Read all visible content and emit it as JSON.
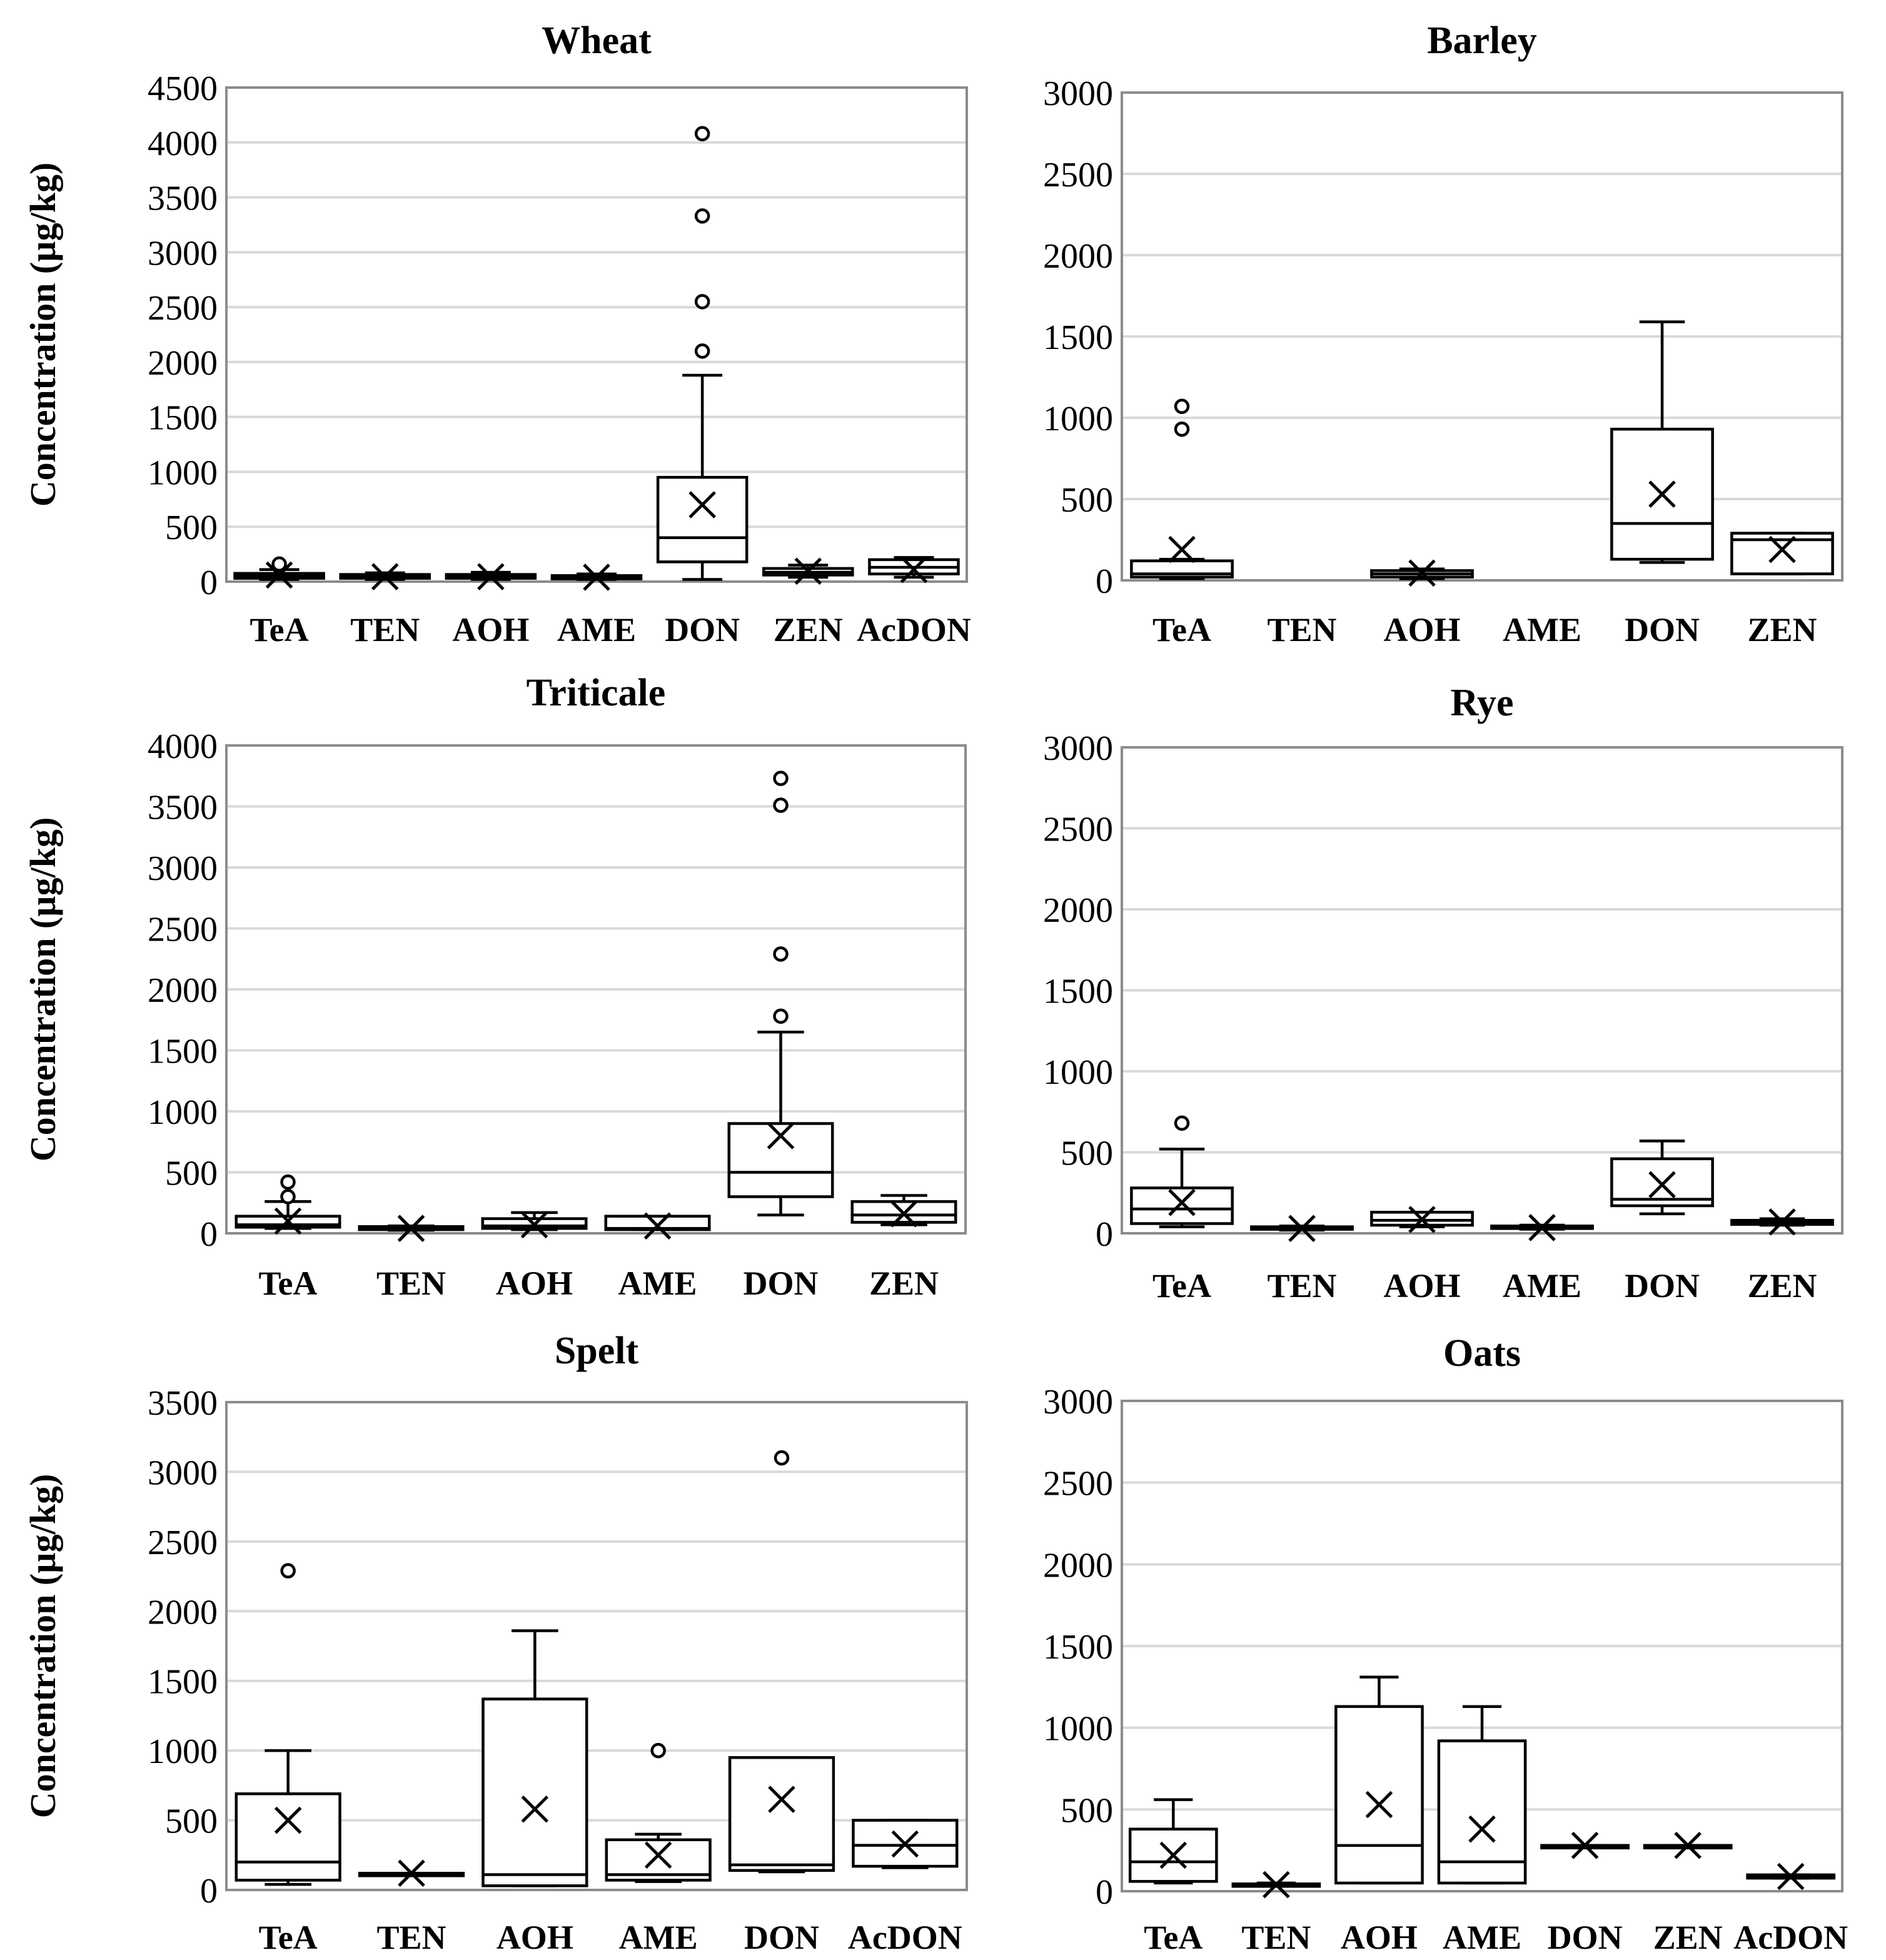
{
  "figure": {
    "ylabel": "Concentration (µg/kg)"
  },
  "chart_data": [
    {
      "type": "box",
      "title": "Wheat",
      "ylabel": "Concentration (µg/kg)",
      "ylim": [
        0,
        4500
      ],
      "yticks": [
        0,
        500,
        1000,
        1500,
        2000,
        2500,
        3000,
        3500,
        4000,
        4500
      ],
      "categories": [
        "TeA",
        "TEN",
        "AOH",
        "AME",
        "DON",
        "ZEN",
        "AcDON"
      ],
      "boxes": [
        {
          "category": "TeA",
          "min": 20,
          "q1": 30,
          "median": 55,
          "q3": 75,
          "max": 110,
          "mean": 60,
          "outliers": [
            160
          ]
        },
        {
          "category": "TEN",
          "min": 20,
          "q1": 30,
          "median": 45,
          "q3": 65,
          "max": 80,
          "mean": 45,
          "outliers": []
        },
        {
          "category": "AOH",
          "min": 20,
          "q1": 30,
          "median": 45,
          "q3": 65,
          "max": 85,
          "mean": 45,
          "outliers": []
        },
        {
          "category": "AME",
          "min": 20,
          "q1": 25,
          "median": 40,
          "q3": 55,
          "max": 70,
          "mean": 40,
          "outliers": []
        },
        {
          "category": "DON",
          "min": 20,
          "q1": 180,
          "median": 400,
          "q3": 950,
          "max": 1880,
          "mean": 700,
          "outliers": [
            2100,
            2550,
            3330,
            4080
          ]
        },
        {
          "category": "ZEN",
          "min": 40,
          "q1": 60,
          "median": 85,
          "q3": 120,
          "max": 150,
          "mean": 95,
          "outliers": []
        },
        {
          "category": "AcDON",
          "min": 40,
          "q1": 70,
          "median": 130,
          "q3": 200,
          "max": 220,
          "mean": 110,
          "outliers": []
        }
      ]
    },
    {
      "type": "box",
      "title": "Barley",
      "ylabel": "",
      "ylim": [
        0,
        3000
      ],
      "yticks": [
        0,
        500,
        1000,
        1500,
        2000,
        2500,
        3000
      ],
      "categories": [
        "TeA",
        "TEN",
        "AOH",
        "AME",
        "DON",
        "ZEN"
      ],
      "boxes": [
        {
          "category": "TeA",
          "min": 10,
          "q1": 20,
          "median": 40,
          "q3": 120,
          "max": 130,
          "mean": 190,
          "outliers": [
            930,
            1070
          ]
        },
        {
          "category": "AOH",
          "min": 10,
          "q1": 20,
          "median": 40,
          "q3": 60,
          "max": 70,
          "mean": 45,
          "outliers": []
        },
        {
          "category": "DON",
          "min": 110,
          "q1": 130,
          "median": 350,
          "q3": 930,
          "max": 1590,
          "mean": 530,
          "outliers": []
        },
        {
          "category": "ZEN",
          "min": 40,
          "q1": 40,
          "median": 250,
          "q3": 290,
          "max": 290,
          "mean": 190,
          "outliers": []
        }
      ]
    },
    {
      "type": "box",
      "title": "Triticale",
      "ylabel": "Concentration (µg/kg)",
      "ylim": [
        0,
        4000
      ],
      "yticks": [
        0,
        500,
        1000,
        1500,
        2000,
        2500,
        3000,
        3500,
        4000
      ],
      "categories": [
        "TeA",
        "TEN",
        "AOH",
        "AME",
        "DON",
        "ZEN"
      ],
      "boxes": [
        {
          "category": "TeA",
          "min": 40,
          "q1": 50,
          "median": 70,
          "q3": 140,
          "max": 260,
          "mean": 100,
          "outliers": [
            300,
            420
          ]
        },
        {
          "category": "TEN",
          "min": 25,
          "q1": 30,
          "median": 40,
          "q3": 55,
          "max": 60,
          "mean": 40,
          "outliers": []
        },
        {
          "category": "AOH",
          "min": 30,
          "q1": 40,
          "median": 60,
          "q3": 120,
          "max": 170,
          "mean": 70,
          "outliers": []
        },
        {
          "category": "AME",
          "min": 30,
          "q1": 30,
          "median": 40,
          "q3": 140,
          "max": 140,
          "mean": 60,
          "outliers": []
        },
        {
          "category": "DON",
          "min": 150,
          "q1": 300,
          "median": 500,
          "q3": 900,
          "max": 1650,
          "mean": 800,
          "outliers": [
            1780,
            2290,
            3510,
            3730
          ]
        },
        {
          "category": "ZEN",
          "min": 70,
          "q1": 90,
          "median": 150,
          "q3": 260,
          "max": 310,
          "mean": 160,
          "outliers": []
        }
      ]
    },
    {
      "type": "box",
      "title": "Rye",
      "ylabel": "",
      "ylim": [
        0,
        3000
      ],
      "yticks": [
        0,
        500,
        1000,
        1500,
        2000,
        2500,
        3000
      ],
      "categories": [
        "TeA",
        "TEN",
        "AOH",
        "AME",
        "DON",
        "ZEN"
      ],
      "boxes": [
        {
          "category": "TeA",
          "min": 40,
          "q1": 60,
          "median": 150,
          "q3": 280,
          "max": 520,
          "mean": 190,
          "outliers": [
            680
          ]
        },
        {
          "category": "TEN",
          "min": 20,
          "q1": 25,
          "median": 30,
          "q3": 40,
          "max": 45,
          "mean": 30,
          "outliers": []
        },
        {
          "category": "AOH",
          "min": 40,
          "q1": 50,
          "median": 80,
          "q3": 130,
          "max": 130,
          "mean": 85,
          "outliers": []
        },
        {
          "category": "AME",
          "min": 25,
          "q1": 30,
          "median": 35,
          "q3": 45,
          "max": 50,
          "mean": 35,
          "outliers": []
        },
        {
          "category": "DON",
          "min": 120,
          "q1": 170,
          "median": 210,
          "q3": 460,
          "max": 570,
          "mean": 300,
          "outliers": []
        },
        {
          "category": "ZEN",
          "min": 50,
          "q1": 55,
          "median": 70,
          "q3": 80,
          "max": 90,
          "mean": 70,
          "outliers": []
        }
      ]
    },
    {
      "type": "box",
      "title": "Spelt",
      "ylabel": "Concentration (µg/kg)",
      "ylim": [
        0,
        3500
      ],
      "yticks": [
        0,
        500,
        1000,
        1500,
        2000,
        2500,
        3000,
        3500
      ],
      "categories": [
        "TeA",
        "TEN",
        "AOH",
        "AME",
        "DON",
        "AcDON"
      ],
      "boxes": [
        {
          "category": "TeA",
          "min": 40,
          "q1": 70,
          "median": 200,
          "q3": 690,
          "max": 1000,
          "mean": 500,
          "outliers": [
            2290
          ]
        },
        {
          "category": "TEN",
          "min": 120,
          "q1": 120,
          "median": 120,
          "q3": 120,
          "max": 120,
          "mean": 120,
          "outliers": []
        },
        {
          "category": "AOH",
          "min": 30,
          "q1": 30,
          "median": 110,
          "q3": 1370,
          "max": 1860,
          "mean": 580,
          "outliers": []
        },
        {
          "category": "AME",
          "min": 60,
          "q1": 70,
          "median": 110,
          "q3": 360,
          "max": 400,
          "mean": 250,
          "outliers": [
            1000
          ]
        },
        {
          "category": "DON",
          "min": 130,
          "q1": 140,
          "median": 180,
          "q3": 950,
          "max": 950,
          "mean": 650,
          "outliers": [
            3100
          ]
        },
        {
          "category": "AcDON",
          "min": 160,
          "q1": 170,
          "median": 320,
          "q3": 500,
          "max": 500,
          "mean": 330,
          "outliers": []
        }
      ]
    },
    {
      "type": "box",
      "title": "Oats",
      "ylabel": "",
      "ylim": [
        0,
        3000
      ],
      "yticks": [
        0,
        500,
        1000,
        1500,
        2000,
        2500,
        3000
      ],
      "categories": [
        "TeA",
        "TEN",
        "AOH",
        "AME",
        "DON",
        "ZEN",
        "AcDON"
      ],
      "boxes": [
        {
          "category": "TeA",
          "min": 50,
          "q1": 60,
          "median": 180,
          "q3": 380,
          "max": 560,
          "mean": 220,
          "outliers": []
        },
        {
          "category": "TEN",
          "min": 30,
          "q1": 35,
          "median": 40,
          "q3": 45,
          "max": 50,
          "mean": 40,
          "outliers": []
        },
        {
          "category": "AOH",
          "min": 50,
          "q1": 50,
          "median": 280,
          "q3": 1130,
          "max": 1310,
          "mean": 530,
          "outliers": []
        },
        {
          "category": "AME",
          "min": 50,
          "q1": 50,
          "median": 180,
          "q3": 920,
          "max": 1130,
          "mean": 380,
          "outliers": []
        },
        {
          "category": "DON",
          "min": 280,
          "q1": 280,
          "median": 280,
          "q3": 280,
          "max": 280,
          "mean": 280,
          "outliers": []
        },
        {
          "category": "ZEN",
          "min": 280,
          "q1": 280,
          "median": 280,
          "q3": 280,
          "max": 280,
          "mean": 280,
          "outliers": []
        },
        {
          "category": "AcDON",
          "min": 80,
          "q1": 80,
          "median": 90,
          "q3": 100,
          "max": 100,
          "mean": 90,
          "outliers": []
        }
      ]
    }
  ]
}
